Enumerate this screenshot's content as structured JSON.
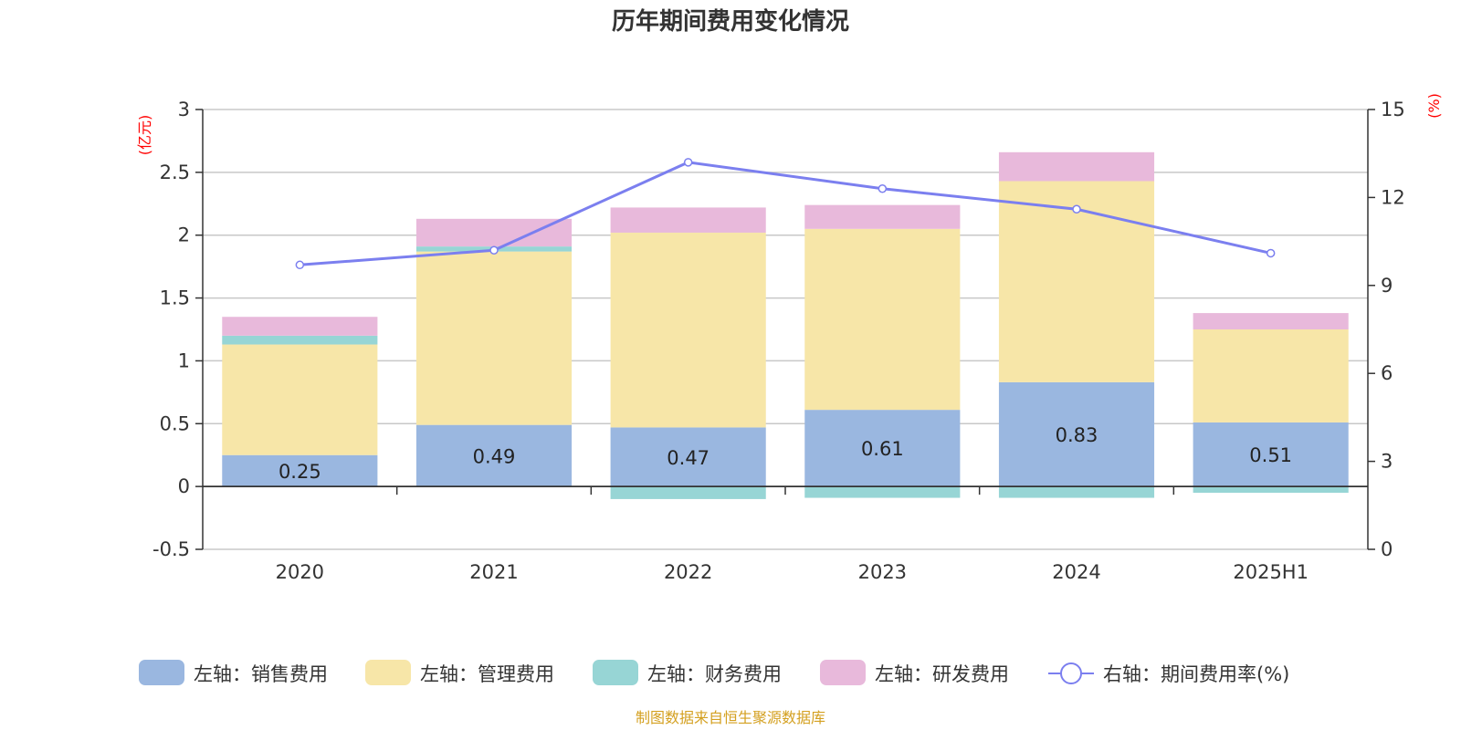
{
  "chart_data": {
    "type": "bar",
    "stacked": true,
    "title": "历年期间费用变化情况",
    "categories": [
      "2020",
      "2021",
      "2022",
      "2023",
      "2024",
      "2025H1"
    ],
    "left_axis": {
      "unit": "(亿元)",
      "ylim": [
        -0.5,
        3
      ],
      "ticks": [
        -0.5,
        0,
        0.5,
        1,
        1.5,
        2,
        2.5,
        3
      ],
      "tick_labels": [
        "-0.5",
        "0",
        "0.5",
        "1",
        "1.5",
        "2",
        "2.5",
        "3"
      ]
    },
    "right_axis": {
      "unit": "(%)",
      "ylim": [
        0,
        15
      ],
      "ticks": [
        0,
        3,
        6,
        9,
        12,
        15
      ],
      "tick_labels": [
        "0",
        "3",
        "6",
        "9",
        "12",
        "15"
      ]
    },
    "series": [
      {
        "name": "左轴：销售费用",
        "type": "bar",
        "axis": "left",
        "color": "#9ab7e0",
        "values": [
          0.25,
          0.49,
          0.47,
          0.61,
          0.83,
          0.51
        ],
        "data_labels": [
          "0.25",
          "0.49",
          "0.47",
          "0.61",
          "0.83",
          "0.51"
        ]
      },
      {
        "name": "左轴：管理费用",
        "type": "bar",
        "axis": "left",
        "color": "#f7e6a8",
        "values": [
          0.88,
          1.38,
          1.55,
          1.44,
          1.6,
          0.74
        ]
      },
      {
        "name": "左轴：财务费用",
        "type": "bar",
        "axis": "left",
        "color": "#97d5d5",
        "values": [
          0.07,
          0.04,
          -0.1,
          -0.09,
          -0.09,
          -0.05
        ]
      },
      {
        "name": "左轴：研发费用",
        "type": "bar",
        "axis": "left",
        "color": "#e8b9db",
        "values": [
          0.15,
          0.22,
          0.2,
          0.19,
          0.23,
          0.13
        ]
      },
      {
        "name": "右轴：期间费用率(%)",
        "type": "line",
        "axis": "right",
        "color": "#7b7fef",
        "values": [
          9.7,
          10.2,
          13.2,
          12.3,
          11.6,
          10.1
        ]
      }
    ],
    "grid": true,
    "legend_position": "bottom",
    "source": "制图数据来自恒生聚源数据库"
  }
}
